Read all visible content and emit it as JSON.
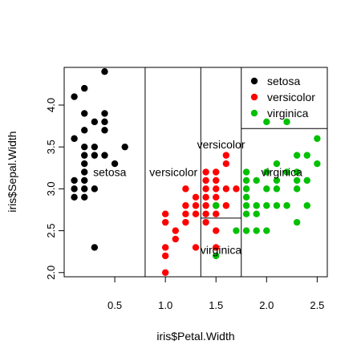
{
  "chart_data": {
    "type": "scatter",
    "xlabel": "iris$Petal.Width",
    "ylabel": "iris$Sepal.Width",
    "xlim": [
      0.0,
      2.6
    ],
    "ylim": [
      1.95,
      4.45
    ],
    "x_ticks": [
      0.5,
      1.0,
      1.5,
      2.0,
      2.5
    ],
    "x_tick_labels": [
      "0.5",
      "1.0",
      "1.5",
      "2.0",
      "2.5"
    ],
    "y_ticks": [
      2.0,
      2.5,
      3.0,
      3.5,
      4.0
    ],
    "y_tick_labels": [
      "2.0",
      "2.5",
      "3.0",
      "3.5",
      "4.0"
    ],
    "grid": false,
    "legend_position": "top-right",
    "series": [
      {
        "name": "setosa",
        "color": "#000000",
        "points": [
          [
            0.1,
            4.1
          ],
          [
            0.1,
            3.6
          ],
          [
            0.1,
            3.1
          ],
          [
            0.1,
            3.0
          ],
          [
            0.1,
            2.9
          ],
          [
            0.2,
            4.2
          ],
          [
            0.2,
            3.9
          ],
          [
            0.2,
            3.7
          ],
          [
            0.2,
            3.5
          ],
          [
            0.2,
            3.4
          ],
          [
            0.2,
            3.3
          ],
          [
            0.2,
            3.2
          ],
          [
            0.2,
            3.1
          ],
          [
            0.2,
            3.0
          ],
          [
            0.2,
            2.9
          ],
          [
            0.3,
            3.8
          ],
          [
            0.3,
            3.5
          ],
          [
            0.3,
            3.4
          ],
          [
            0.3,
            3.0
          ],
          [
            0.3,
            2.3
          ],
          [
            0.4,
            4.4
          ],
          [
            0.4,
            3.9
          ],
          [
            0.4,
            3.8
          ],
          [
            0.4,
            3.7
          ],
          [
            0.4,
            3.4
          ],
          [
            0.5,
            3.3
          ],
          [
            0.6,
            3.5
          ]
        ]
      },
      {
        "name": "versicolor",
        "color": "#ff0000",
        "points": [
          [
            1.0,
            2.7
          ],
          [
            1.0,
            2.6
          ],
          [
            1.0,
            2.3
          ],
          [
            1.0,
            2.2
          ],
          [
            1.0,
            2.0
          ],
          [
            1.1,
            2.5
          ],
          [
            1.1,
            2.4
          ],
          [
            1.2,
            3.0
          ],
          [
            1.2,
            2.8
          ],
          [
            1.2,
            2.7
          ],
          [
            1.2,
            2.6
          ],
          [
            1.3,
            2.9
          ],
          [
            1.3,
            2.8
          ],
          [
            1.3,
            2.7
          ],
          [
            1.3,
            2.3
          ],
          [
            1.4,
            3.2
          ],
          [
            1.4,
            3.1
          ],
          [
            1.4,
            3.0
          ],
          [
            1.4,
            2.9
          ],
          [
            1.4,
            2.8
          ],
          [
            1.4,
            2.7
          ],
          [
            1.4,
            2.6
          ],
          [
            1.5,
            3.2
          ],
          [
            1.5,
            3.1
          ],
          [
            1.5,
            3.0
          ],
          [
            1.5,
            2.9
          ],
          [
            1.5,
            2.8
          ],
          [
            1.5,
            2.7
          ],
          [
            1.5,
            2.5
          ],
          [
            1.5,
            2.3
          ],
          [
            1.6,
            3.4
          ],
          [
            1.6,
            3.3
          ],
          [
            1.6,
            3.0
          ],
          [
            1.6,
            2.8
          ],
          [
            1.7,
            3.0
          ]
        ]
      },
      {
        "name": "virginica",
        "color": "#00c000",
        "points": [
          [
            1.5,
            2.2
          ],
          [
            1.5,
            2.8
          ],
          [
            1.7,
            2.5
          ],
          [
            1.8,
            3.2
          ],
          [
            1.8,
            3.1
          ],
          [
            1.8,
            3.0
          ],
          [
            1.8,
            2.9
          ],
          [
            1.8,
            2.8
          ],
          [
            1.8,
            2.7
          ],
          [
            1.8,
            2.5
          ],
          [
            1.9,
            3.1
          ],
          [
            1.9,
            2.8
          ],
          [
            1.9,
            2.7
          ],
          [
            1.9,
            2.5
          ],
          [
            2.0,
            3.8
          ],
          [
            2.0,
            3.2
          ],
          [
            2.0,
            3.0
          ],
          [
            2.0,
            2.8
          ],
          [
            2.0,
            2.5
          ],
          [
            2.1,
            3.3
          ],
          [
            2.1,
            3.1
          ],
          [
            2.1,
            3.0
          ],
          [
            2.1,
            2.8
          ],
          [
            2.2,
            3.8
          ],
          [
            2.2,
            3.2
          ],
          [
            2.2,
            2.8
          ],
          [
            2.3,
            3.4
          ],
          [
            2.3,
            3.2
          ],
          [
            2.3,
            3.1
          ],
          [
            2.3,
            3.0
          ],
          [
            2.3,
            2.6
          ],
          [
            2.4,
            3.4
          ],
          [
            2.4,
            3.1
          ],
          [
            2.4,
            2.8
          ],
          [
            2.5,
            3.6
          ],
          [
            2.5,
            3.3
          ]
        ]
      }
    ],
    "partition_lines": [
      {
        "orientation": "vertical",
        "x": 0.8,
        "y_from": 1.95,
        "y_to": 4.45
      },
      {
        "orientation": "vertical",
        "x": 1.35,
        "y_from": 1.95,
        "y_to": 4.45
      },
      {
        "orientation": "vertical",
        "x": 1.75,
        "y_from": 1.95,
        "y_to": 4.45
      },
      {
        "orientation": "horizontal",
        "y": 2.65,
        "x_from": 1.35,
        "x_to": 1.75
      },
      {
        "orientation": "horizontal",
        "y": 3.72,
        "x_from": 1.75,
        "x_to": 2.6
      }
    ],
    "region_labels": [
      {
        "text": "setosa",
        "x": 0.45,
        "y": 3.2
      },
      {
        "text": "versicolor",
        "x": 1.08,
        "y": 3.2
      },
      {
        "text": "versicolor",
        "x": 1.55,
        "y": 3.53
      },
      {
        "text": "virginica",
        "x": 1.55,
        "y": 2.27
      },
      {
        "text": "virginica",
        "x": 2.15,
        "y": 3.2
      }
    ]
  }
}
